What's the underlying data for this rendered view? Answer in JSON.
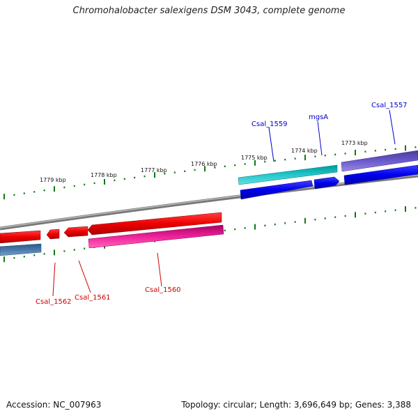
{
  "title": "Chromohalobacter salexigens DSM 3043, complete genome",
  "footer": {
    "accession": "Accession: NC_007963",
    "info": "Topology: circular; Length: 3,696,649 bp; Genes: 3,388"
  },
  "ticks": [
    {
      "label": "1773 kbp"
    },
    {
      "label": "1774 kbp"
    },
    {
      "label": "1775 kbp"
    },
    {
      "label": "1776 kbp"
    },
    {
      "label": "1777 kbp"
    },
    {
      "label": "1778 kbp"
    },
    {
      "label": "1779 kbp"
    }
  ],
  "genes": [
    {
      "name": "Csal_1557",
      "color": "#0000cc"
    },
    {
      "name": "mgsA",
      "color": "#0000cc"
    },
    {
      "name": "Csal_1559",
      "color": "#0000cc"
    },
    {
      "name": "Csal_1560",
      "color": "#cc0000"
    },
    {
      "name": "Csal_1561",
      "color": "#cc0000"
    },
    {
      "name": "Csal_1562",
      "color": "#cc0000"
    }
  ],
  "colors": {
    "cds_forward": "#0000ee",
    "cds_reverse": "#ee0000",
    "gene_forward": "#22c7cc",
    "gene_reverse": "#ee2299",
    "gene_other_forward": "#6a5acd",
    "gene_other_reverse": "#4a78aa",
    "backbone": "#888888",
    "ticks": "#117711"
  }
}
